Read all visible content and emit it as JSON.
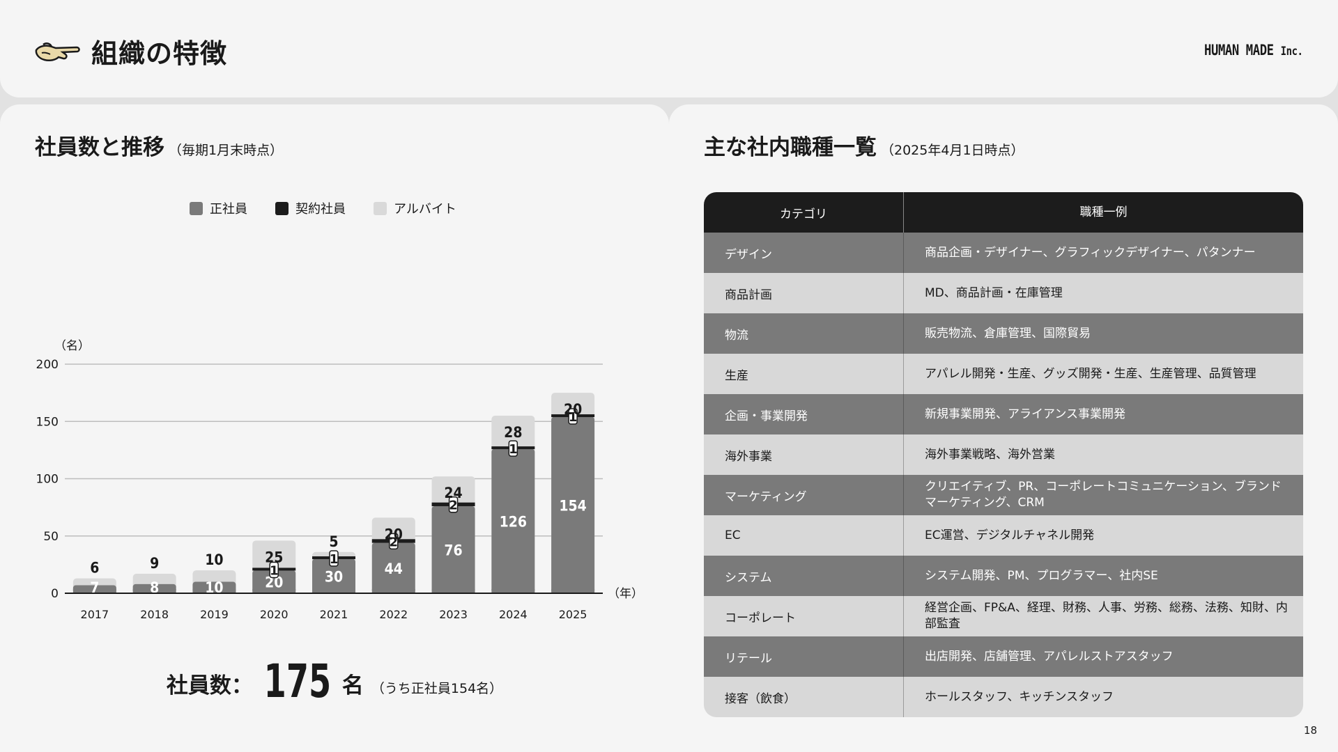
{
  "header": {
    "title": "組織の特徴",
    "brand": "HUMAN MADE",
    "brand_suffix": "Inc.",
    "logo_icon": "pointing-hand-icon"
  },
  "left": {
    "title": "社員数と推移",
    "subtitle": "（毎期1月末時点）",
    "legend": [
      {
        "label": "正社員",
        "color": "#7a7a7a"
      },
      {
        "label": "契約社員",
        "color": "#1c1c1c"
      },
      {
        "label": "アルバイト",
        "color": "#d9d9d9"
      }
    ],
    "total": {
      "label": "社員数：",
      "value": "175",
      "unit": "名",
      "note": "（うち正社員154名）"
    }
  },
  "chart_data": {
    "type": "bar",
    "stacked": true,
    "y_unit_label": "（名）",
    "x_unit_label": "（年）",
    "ylim": [
      0,
      200
    ],
    "yticks": [
      0,
      50,
      100,
      150,
      200
    ],
    "grid": true,
    "legend_position": "top",
    "categories": [
      "2017",
      "2018",
      "2019",
      "2020",
      "2021",
      "2022",
      "2023",
      "2024",
      "2025"
    ],
    "series": [
      {
        "name": "正社員",
        "color": "#7a7a7a",
        "values": [
          7,
          8,
          10,
          20,
          30,
          44,
          76,
          126,
          154
        ]
      },
      {
        "name": "契約社員",
        "color": "#1c1c1c",
        "values": [
          0,
          0,
          0,
          1,
          1,
          2,
          2,
          1,
          1
        ]
      },
      {
        "name": "アルバイト",
        "color": "#d9d9d9",
        "values": [
          6,
          9,
          10,
          25,
          5,
          20,
          24,
          28,
          20
        ]
      }
    ]
  },
  "right": {
    "title": "主な社内職種一覧",
    "subtitle": "（2025年4月1日時点）",
    "columns": [
      "カテゴリ",
      "職種一例"
    ],
    "rows": [
      {
        "category": "デザイン",
        "examples": "商品企画・デザイナー、グラフィックデザイナー、パタンナー"
      },
      {
        "category": "商品計画",
        "examples": "MD、商品計画・在庫管理"
      },
      {
        "category": "物流",
        "examples": "販売物流、倉庫管理、国際貿易"
      },
      {
        "category": "生産",
        "examples": "アパレル開発・生産、グッズ開発・生産、生産管理、品質管理"
      },
      {
        "category": "企画・事業開発",
        "examples": "新規事業開発、アライアンス事業開発"
      },
      {
        "category": "海外事業",
        "examples": "海外事業戦略、海外営業"
      },
      {
        "category": "マーケティング",
        "examples": "クリエイティブ、PR、コーポレートコミュニケーション、ブランドマーケティング、CRM"
      },
      {
        "category": "EC",
        "examples": "EC運営、デジタルチャネル開発"
      },
      {
        "category": "システム",
        "examples": "システム開発、PM、プログラマー、社内SE"
      },
      {
        "category": "コーポレート",
        "examples": "経営企画、FP&A、経理、財務、人事、労務、総務、法務、知財、内部監査"
      },
      {
        "category": "リテール",
        "examples": "出店開発、店舗管理、アパレルストアスタッフ"
      },
      {
        "category": "接客（飲食）",
        "examples": "ホールスタッフ、キッチンスタッフ"
      }
    ]
  },
  "page_number": "18"
}
